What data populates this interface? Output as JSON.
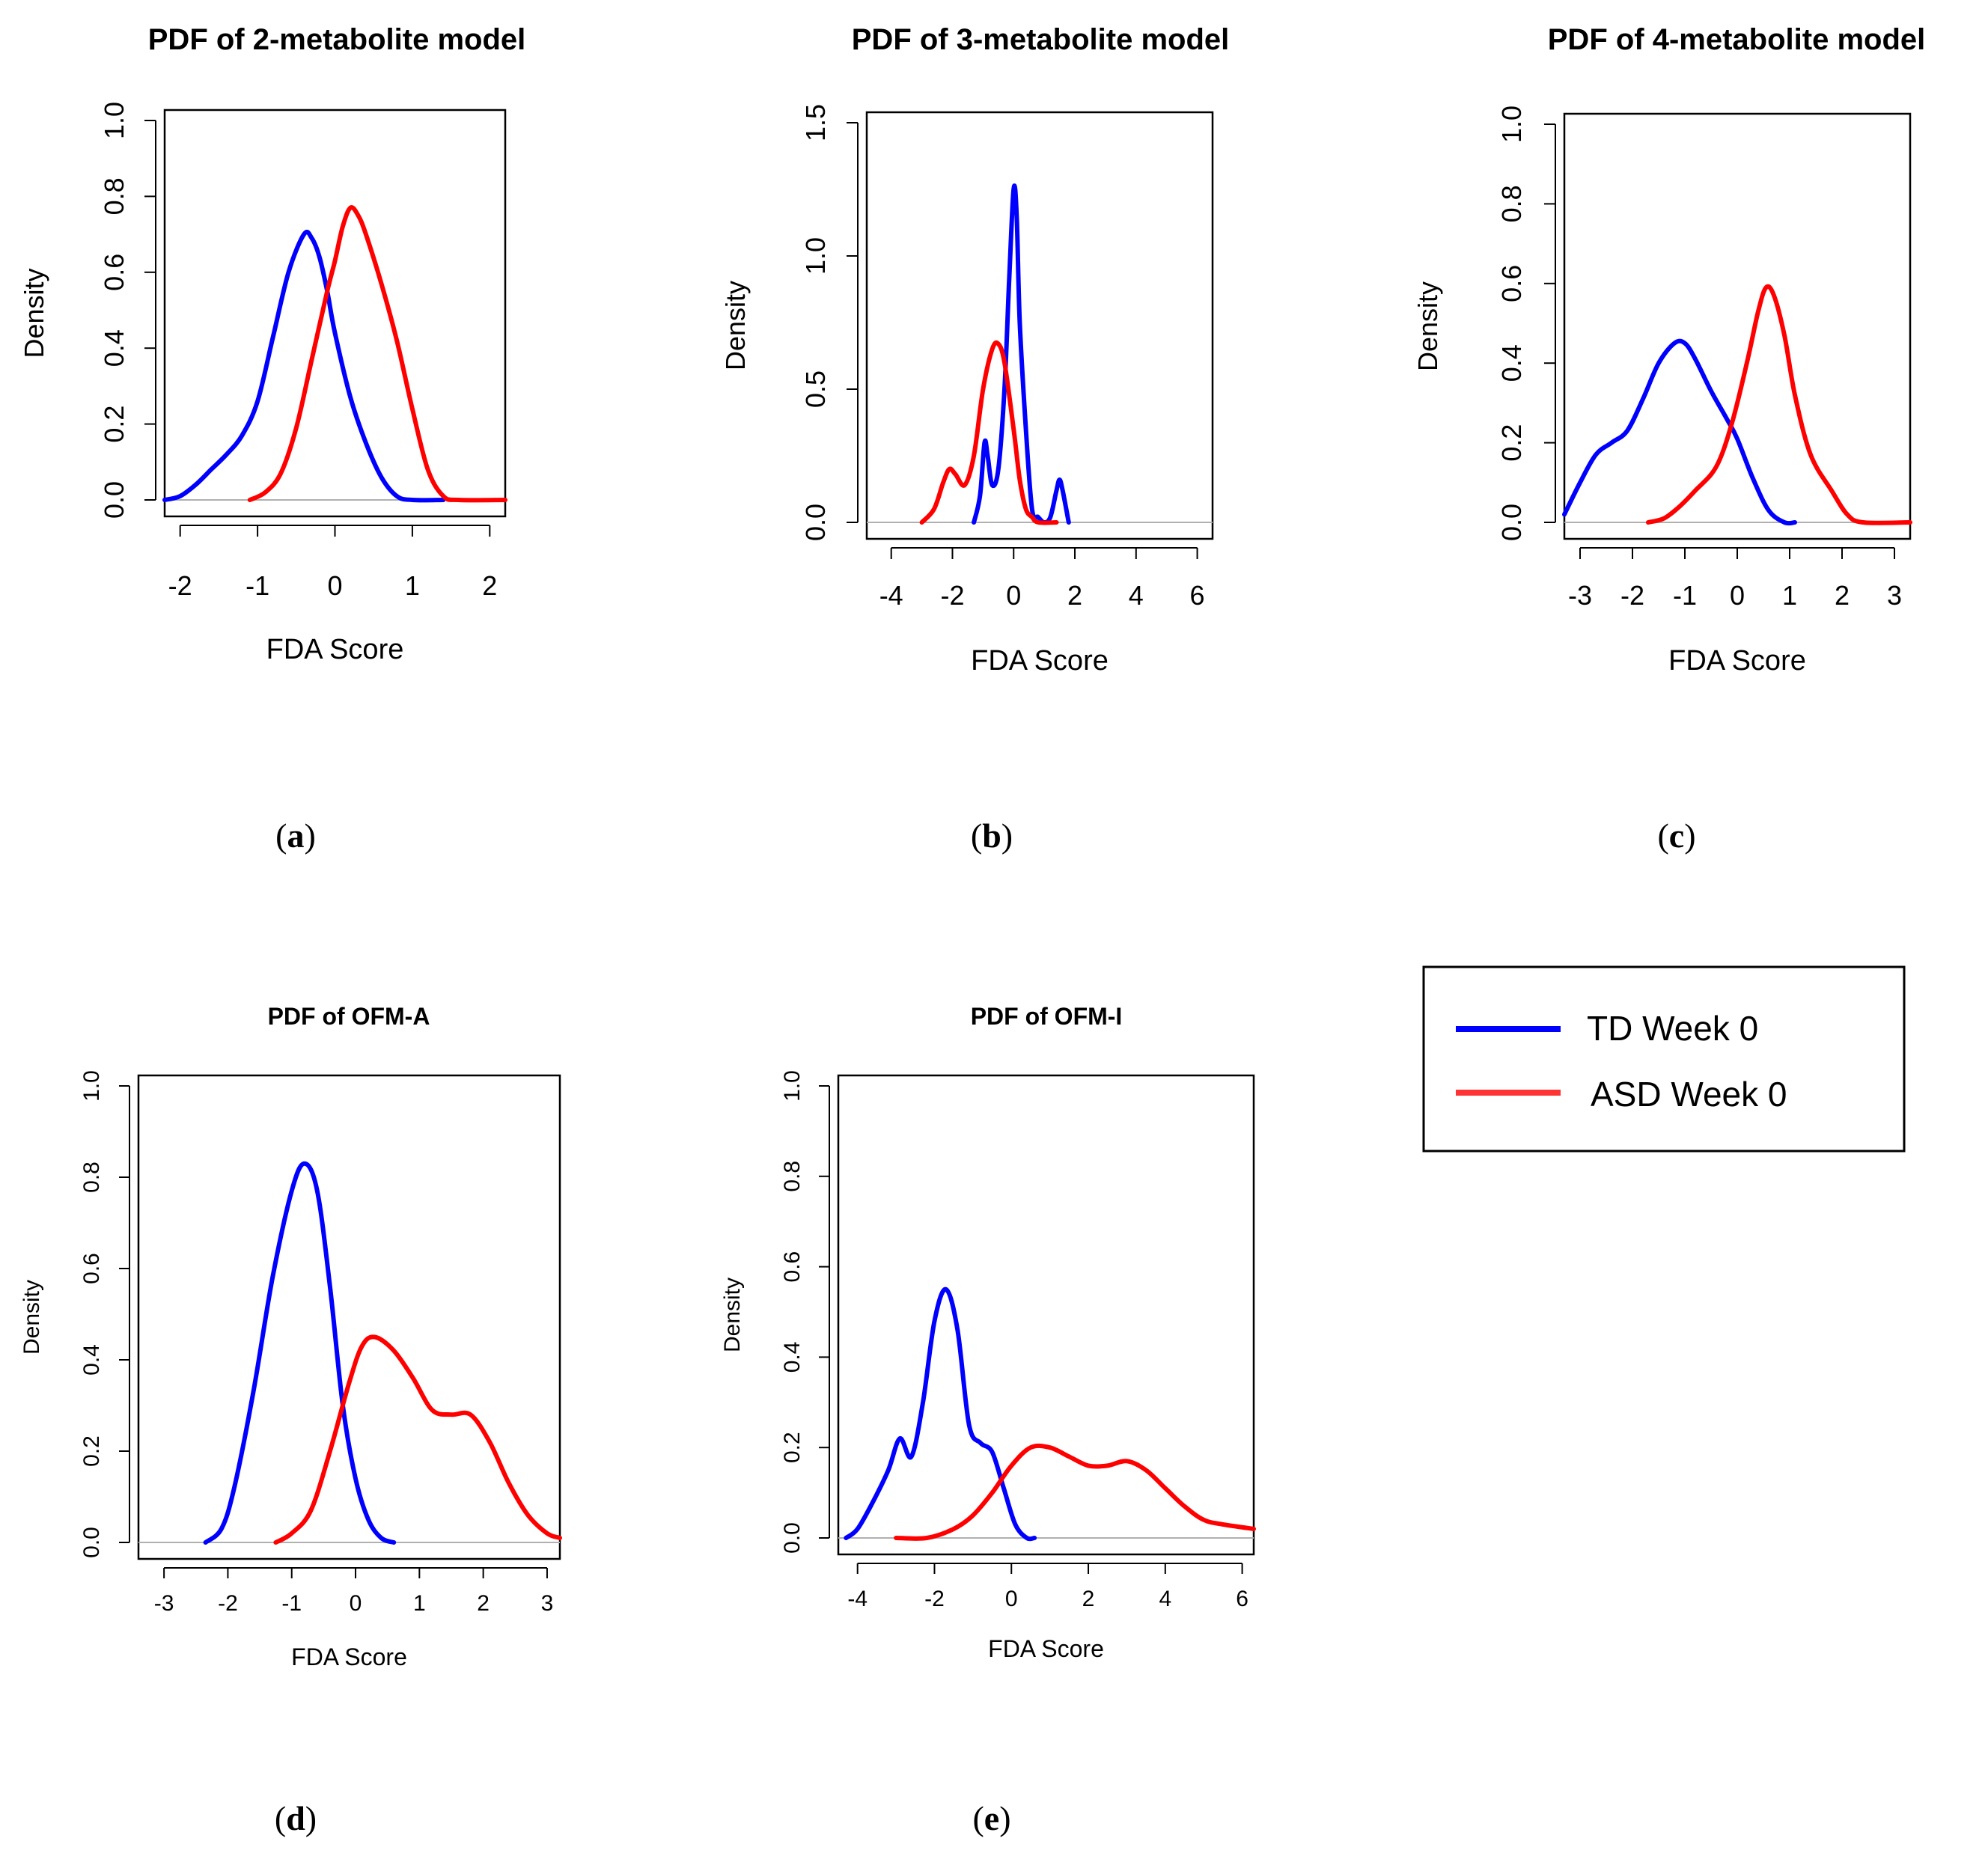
{
  "chart_data": [
    {
      "id": "a",
      "type": "line",
      "panel_label": "a",
      "title": "PDF of 2-metabolite model",
      "xlabel": "FDA Score",
      "ylabel": "Density",
      "xlim": [
        -2.2,
        2.2
      ],
      "ylim": [
        0,
        1.0
      ],
      "xticks": [
        -2,
        -1,
        0,
        1,
        2
      ],
      "xtick_labels": [
        "-2",
        "-1",
        "0",
        "1",
        "2"
      ],
      "yticks": [
        0,
        0.2,
        0.4,
        0.6,
        0.8,
        1.0
      ],
      "ytick_labels": [
        "0.0",
        "0.2",
        "0.4",
        "0.6",
        "0.8",
        "1.0"
      ],
      "series": [
        {
          "name": "TD Week 0",
          "color": "#0000ff",
          "points": [
            [
              -2.2,
              0.0
            ],
            [
              -2.0,
              0.01
            ],
            [
              -1.8,
              0.04
            ],
            [
              -1.6,
              0.08
            ],
            [
              -1.4,
              0.12
            ],
            [
              -1.2,
              0.17
            ],
            [
              -1.0,
              0.26
            ],
            [
              -0.8,
              0.43
            ],
            [
              -0.6,
              0.6
            ],
            [
              -0.4,
              0.7
            ],
            [
              -0.3,
              0.69
            ],
            [
              -0.2,
              0.64
            ],
            [
              -0.1,
              0.55
            ],
            [
              0.0,
              0.44
            ],
            [
              0.2,
              0.27
            ],
            [
              0.4,
              0.15
            ],
            [
              0.6,
              0.06
            ],
            [
              0.8,
              0.01
            ],
            [
              1.0,
              0.0
            ],
            [
              1.4,
              0.0
            ]
          ]
        },
        {
          "name": "ASD Week 0",
          "color": "#ff0000",
          "points": [
            [
              -1.1,
              0.0
            ],
            [
              -0.9,
              0.02
            ],
            [
              -0.7,
              0.07
            ],
            [
              -0.5,
              0.19
            ],
            [
              -0.3,
              0.37
            ],
            [
              -0.1,
              0.55
            ],
            [
              0.0,
              0.63
            ],
            [
              0.1,
              0.72
            ],
            [
              0.2,
              0.77
            ],
            [
              0.3,
              0.75
            ],
            [
              0.4,
              0.7
            ],
            [
              0.6,
              0.57
            ],
            [
              0.8,
              0.42
            ],
            [
              1.0,
              0.24
            ],
            [
              1.2,
              0.08
            ],
            [
              1.4,
              0.01
            ],
            [
              1.6,
              0.0
            ],
            [
              2.2,
              0.0
            ]
          ]
        }
      ]
    },
    {
      "id": "b",
      "type": "line",
      "panel_label": "b",
      "title": "PDF of 3-metabolite model",
      "xlabel": "FDA Score",
      "ylabel": "Density",
      "xlim": [
        -4.8,
        6.5
      ],
      "ylim": [
        0,
        1.5
      ],
      "xticks": [
        -4,
        -2,
        0,
        2,
        4,
        6
      ],
      "xtick_labels": [
        "-4",
        "-2",
        "0",
        "2",
        "4",
        "6"
      ],
      "yticks": [
        0,
        0.5,
        1.0,
        1.5
      ],
      "ytick_labels": [
        "0.0",
        "0.5",
        "1.0",
        "1.5"
      ],
      "series": [
        {
          "name": "TD Week 0",
          "color": "#0000ff",
          "points": [
            [
              -1.3,
              0.0
            ],
            [
              -1.1,
              0.1
            ],
            [
              -0.95,
              0.3
            ],
            [
              -0.85,
              0.25
            ],
            [
              -0.7,
              0.14
            ],
            [
              -0.5,
              0.2
            ],
            [
              -0.3,
              0.5
            ],
            [
              -0.15,
              0.9
            ],
            [
              0.0,
              1.25
            ],
            [
              0.1,
              1.15
            ],
            [
              0.2,
              0.75
            ],
            [
              0.4,
              0.35
            ],
            [
              0.6,
              0.05
            ],
            [
              0.8,
              0.02
            ],
            [
              1.0,
              0.0
            ],
            [
              1.2,
              0.02
            ],
            [
              1.4,
              0.12
            ],
            [
              1.5,
              0.16
            ],
            [
              1.6,
              0.12
            ],
            [
              1.8,
              0.0
            ]
          ]
        },
        {
          "name": "ASD Week 0",
          "color": "#ff0000",
          "points": [
            [
              -3.0,
              0.0
            ],
            [
              -2.6,
              0.05
            ],
            [
              -2.3,
              0.15
            ],
            [
              -2.1,
              0.2
            ],
            [
              -1.9,
              0.18
            ],
            [
              -1.6,
              0.14
            ],
            [
              -1.3,
              0.25
            ],
            [
              -1.0,
              0.5
            ],
            [
              -0.7,
              0.65
            ],
            [
              -0.5,
              0.67
            ],
            [
              -0.3,
              0.6
            ],
            [
              0.0,
              0.35
            ],
            [
              0.2,
              0.16
            ],
            [
              0.4,
              0.05
            ],
            [
              0.6,
              0.02
            ],
            [
              0.8,
              0.0
            ],
            [
              1.4,
              0.0
            ]
          ]
        }
      ]
    },
    {
      "id": "c",
      "type": "line",
      "panel_label": "c",
      "title": "PDF of 4-metabolite model",
      "xlabel": "FDA Score",
      "ylabel": "Density",
      "xlim": [
        -3.3,
        3.3
      ],
      "ylim": [
        0,
        1.0
      ],
      "xticks": [
        -3,
        -2,
        -1,
        0,
        1,
        2,
        3
      ],
      "xtick_labels": [
        "-3",
        "-2",
        "-1",
        "0",
        "1",
        "2",
        "3"
      ],
      "yticks": [
        0,
        0.2,
        0.4,
        0.6,
        0.8,
        1.0
      ],
      "ytick_labels": [
        "0.0",
        "0.2",
        "0.4",
        "0.6",
        "0.8",
        "1.0"
      ],
      "series": [
        {
          "name": "TD Week 0",
          "color": "#0000ff",
          "points": [
            [
              -3.3,
              0.02
            ],
            [
              -3.0,
              0.1
            ],
            [
              -2.7,
              0.17
            ],
            [
              -2.4,
              0.2
            ],
            [
              -2.1,
              0.23
            ],
            [
              -1.8,
              0.31
            ],
            [
              -1.5,
              0.4
            ],
            [
              -1.2,
              0.45
            ],
            [
              -1.0,
              0.45
            ],
            [
              -0.8,
              0.41
            ],
            [
              -0.5,
              0.33
            ],
            [
              -0.2,
              0.26
            ],
            [
              0.0,
              0.21
            ],
            [
              0.3,
              0.11
            ],
            [
              0.6,
              0.03
            ],
            [
              0.9,
              0.0
            ],
            [
              1.1,
              0.0
            ]
          ]
        },
        {
          "name": "ASD Week 0",
          "color": "#ff0000",
          "points": [
            [
              -1.7,
              0.0
            ],
            [
              -1.4,
              0.01
            ],
            [
              -1.1,
              0.04
            ],
            [
              -0.8,
              0.08
            ],
            [
              -0.4,
              0.14
            ],
            [
              -0.1,
              0.25
            ],
            [
              0.2,
              0.41
            ],
            [
              0.4,
              0.53
            ],
            [
              0.55,
              0.59
            ],
            [
              0.7,
              0.57
            ],
            [
              0.9,
              0.47
            ],
            [
              1.1,
              0.32
            ],
            [
              1.4,
              0.17
            ],
            [
              1.8,
              0.08
            ],
            [
              2.1,
              0.02
            ],
            [
              2.4,
              0.0
            ],
            [
              3.3,
              0.0
            ]
          ]
        }
      ]
    },
    {
      "id": "d",
      "type": "line",
      "panel_label": "d",
      "title": "PDF of OFM-A",
      "xlabel": "FDA Score",
      "ylabel": "Density",
      "xlim": [
        -3.4,
        3.2
      ],
      "ylim": [
        0,
        1.0
      ],
      "xticks": [
        -3,
        -2,
        -1,
        0,
        1,
        2,
        3
      ],
      "xtick_labels": [
        "-3",
        "-2",
        "-1",
        "0",
        "1",
        "2",
        "3"
      ],
      "yticks": [
        0,
        0.2,
        0.4,
        0.6,
        0.8,
        1.0
      ],
      "ytick_labels": [
        "0.0",
        "0.2",
        "0.4",
        "0.6",
        "0.8",
        "1.0"
      ],
      "series": [
        {
          "name": "TD Week 0",
          "color": "#0000ff",
          "points": [
            [
              -2.35,
              0.0
            ],
            [
              -2.1,
              0.03
            ],
            [
              -1.9,
              0.12
            ],
            [
              -1.6,
              0.33
            ],
            [
              -1.3,
              0.58
            ],
            [
              -1.0,
              0.77
            ],
            [
              -0.8,
              0.83
            ],
            [
              -0.6,
              0.77
            ],
            [
              -0.4,
              0.56
            ],
            [
              -0.2,
              0.3
            ],
            [
              0.0,
              0.14
            ],
            [
              0.2,
              0.05
            ],
            [
              0.4,
              0.01
            ],
            [
              0.6,
              0.0
            ]
          ]
        },
        {
          "name": "ASD Week 0",
          "color": "#ff0000",
          "points": [
            [
              -1.25,
              0.0
            ],
            [
              -1.0,
              0.02
            ],
            [
              -0.7,
              0.07
            ],
            [
              -0.4,
              0.2
            ],
            [
              -0.1,
              0.35
            ],
            [
              0.1,
              0.43
            ],
            [
              0.3,
              0.45
            ],
            [
              0.6,
              0.42
            ],
            [
              0.9,
              0.36
            ],
            [
              1.2,
              0.29
            ],
            [
              1.5,
              0.28
            ],
            [
              1.8,
              0.28
            ],
            [
              2.1,
              0.22
            ],
            [
              2.4,
              0.13
            ],
            [
              2.7,
              0.06
            ],
            [
              3.0,
              0.02
            ],
            [
              3.2,
              0.01
            ]
          ]
        }
      ]
    },
    {
      "id": "e",
      "type": "line",
      "panel_label": "e",
      "title": "PDF of OFM-I",
      "xlabel": "FDA Score",
      "ylabel": "Density",
      "xlim": [
        -4.5,
        6.3
      ],
      "ylim": [
        0,
        1.0
      ],
      "xticks": [
        -4,
        -2,
        0,
        2,
        4,
        6
      ],
      "xtick_labels": [
        "-4",
        "-2",
        "0",
        "2",
        "4",
        "6"
      ],
      "yticks": [
        0,
        0.2,
        0.4,
        0.6,
        0.8,
        1.0
      ],
      "ytick_labels": [
        "0.0",
        "0.2",
        "0.4",
        "0.6",
        "0.8",
        "1.0"
      ],
      "series": [
        {
          "name": "TD Week 0",
          "color": "#0000ff",
          "points": [
            [
              -4.3,
              0.0
            ],
            [
              -4.0,
              0.02
            ],
            [
              -3.6,
              0.08
            ],
            [
              -3.2,
              0.15
            ],
            [
              -2.9,
              0.22
            ],
            [
              -2.6,
              0.18
            ],
            [
              -2.3,
              0.3
            ],
            [
              -2.0,
              0.48
            ],
            [
              -1.7,
              0.55
            ],
            [
              -1.4,
              0.46
            ],
            [
              -1.1,
              0.25
            ],
            [
              -0.8,
              0.21
            ],
            [
              -0.5,
              0.19
            ],
            [
              -0.2,
              0.11
            ],
            [
              0.1,
              0.03
            ],
            [
              0.4,
              0.0
            ],
            [
              0.6,
              0.0
            ]
          ]
        },
        {
          "name": "ASD Week 0",
          "color": "#ff0000",
          "points": [
            [
              -3.0,
              0.0
            ],
            [
              -2.2,
              0.0
            ],
            [
              -1.5,
              0.02
            ],
            [
              -1.0,
              0.05
            ],
            [
              -0.5,
              0.1
            ],
            [
              0.0,
              0.16
            ],
            [
              0.5,
              0.2
            ],
            [
              1.0,
              0.2
            ],
            [
              1.5,
              0.18
            ],
            [
              2.0,
              0.16
            ],
            [
              2.5,
              0.16
            ],
            [
              3.0,
              0.17
            ],
            [
              3.5,
              0.15
            ],
            [
              4.0,
              0.11
            ],
            [
              4.5,
              0.07
            ],
            [
              5.0,
              0.04
            ],
            [
              5.5,
              0.03
            ],
            [
              6.3,
              0.02
            ]
          ]
        }
      ]
    }
  ],
  "legend": {
    "items": [
      {
        "label": "TD Week 0",
        "color": "#0000ff"
      },
      {
        "label": "ASD Week 0",
        "color": "#ff3333"
      }
    ]
  }
}
